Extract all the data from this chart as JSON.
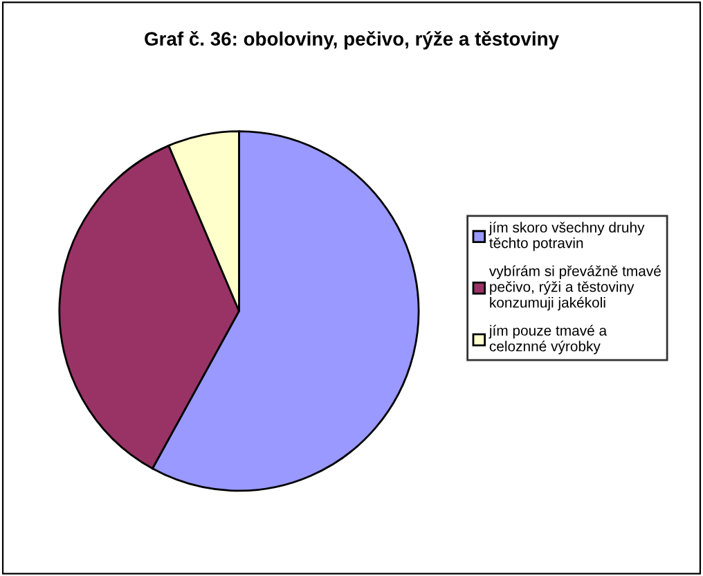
{
  "chart_data": {
    "type": "pie",
    "title": "Graf č. 36: oboloviny, pečivo, rýže a těstoviny",
    "categories": [
      "jím skoro všechny druhy\ntěchto potravin",
      "vybírám si převážně tmavé\npečivo, rýži a těstoviny\nkonzumuji jakékoli",
      "jím pouze tmavé a\nceloznné výrobky"
    ],
    "values": [
      58,
      35.6,
      6.4
    ],
    "colors": [
      "#9999ff",
      "#993366",
      "#ffffcc"
    ],
    "legend": "right"
  }
}
